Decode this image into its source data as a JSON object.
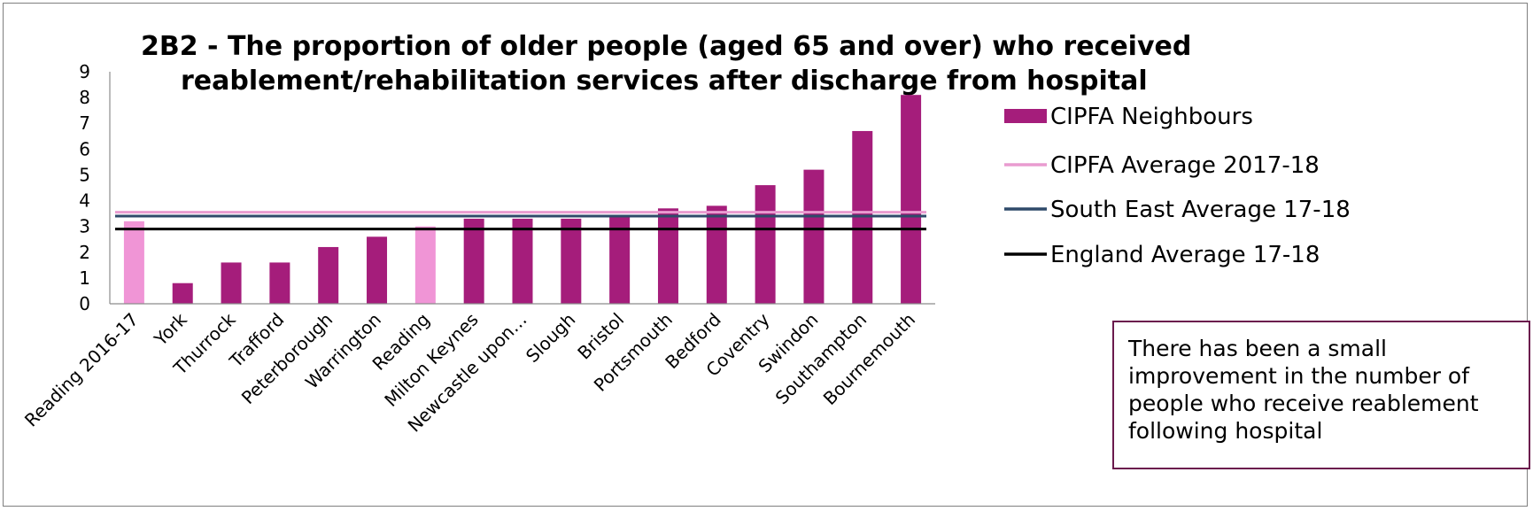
{
  "note": "There has been a small improvement in the number of people who receive reablement following hospital",
  "chart_data": {
    "type": "bar",
    "title_lines": [
      "2B2 - The proportion of older people (aged 65 and over) who received",
      "reablement/rehabilitation services after discharge from hospital"
    ],
    "xlabel": "",
    "ylabel": "",
    "ylim": [
      0,
      9
    ],
    "yticks": [
      0,
      1,
      2,
      3,
      4,
      5,
      6,
      7,
      8,
      9
    ],
    "grid": false,
    "legend_position": "right",
    "categories": [
      "Reading 2016-17",
      "York",
      "Thurrock",
      "Trafford",
      "Peterborough",
      "Warrington",
      "Reading",
      "Milton Keynes",
      "Newcastle upon…",
      "Slough",
      "Bristol",
      "Portsmouth",
      "Bedford",
      "Coventry",
      "Swindon",
      "Southampton",
      "Bournemouth"
    ],
    "series": [
      {
        "name": "CIPFA Neighbours",
        "type": "bar",
        "color": "#a51d7b",
        "highlight_color": "#f095d6",
        "highlight_categories": [
          "Reading 2016-17",
          "Reading"
        ],
        "values": [
          3.2,
          0.8,
          1.6,
          1.6,
          2.2,
          2.6,
          3.0,
          3.3,
          3.3,
          3.3,
          3.4,
          3.7,
          3.8,
          4.6,
          5.2,
          6.7,
          8.1
        ]
      },
      {
        "name": "CIPFA Average 2017-18",
        "type": "line",
        "color": "#e99bd0",
        "value": 3.55
      },
      {
        "name": "South East Average 17-18",
        "type": "line",
        "color": "#2f4a6a",
        "value": 3.4
      },
      {
        "name": "England Average 17-18",
        "type": "line",
        "color": "#000000",
        "value": 2.9
      }
    ]
  }
}
